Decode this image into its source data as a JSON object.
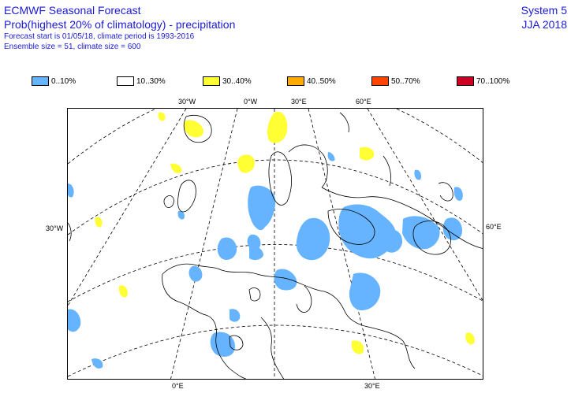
{
  "header": {
    "title": "ECMWF Seasonal Forecast",
    "subtitle": "Prob(highest 20% of climatology) - precipitation",
    "forecast_info": "Forecast start is 01/05/18, climate period is 1993-2016",
    "ensemble_info": "Ensemble size = 51, climate size = 600",
    "system": "System 5",
    "season": "JJA 2018"
  },
  "legend": [
    {
      "label": "0..10%",
      "color": "#66b3ff"
    },
    {
      "label": "10..30%",
      "color": "#ffffff"
    },
    {
      "label": "30..40%",
      "color": "#ffff33"
    },
    {
      "label": "40..50%",
      "color": "#ffaa00"
    },
    {
      "label": "50..70%",
      "color": "#ff4400"
    },
    {
      "label": "70..100%",
      "color": "#cc0022"
    }
  ],
  "grid_labels": {
    "top": [
      "30°W",
      "0°W",
      "30°E",
      "60°E"
    ],
    "left": "30°W",
    "right": "60°E",
    "bottom": [
      "0°E",
      "30°E"
    ]
  }
}
